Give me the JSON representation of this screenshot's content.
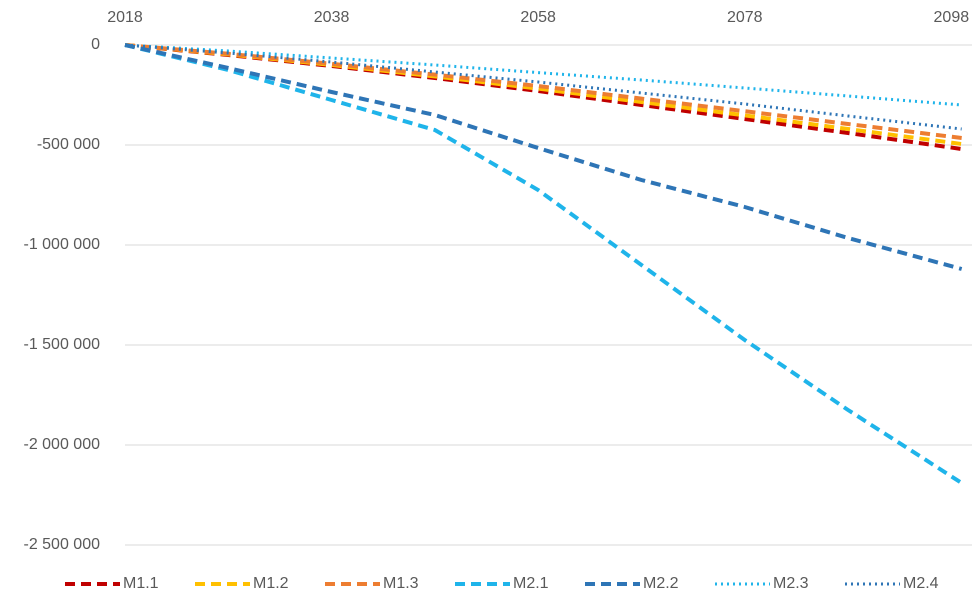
{
  "chart_data": {
    "type": "line",
    "x": [
      2018,
      2028,
      2038,
      2048,
      2058,
      2068,
      2078,
      2088,
      2099
    ],
    "xlim": [
      2018,
      2100
    ],
    "xticks": [
      2018,
      2038,
      2058,
      2078,
      2098
    ],
    "ylim": [
      -2500000,
      0
    ],
    "yticks": [
      0,
      {
        "value": -500000,
        "label": "-500 000"
      },
      {
        "value": -1000000,
        "label": "-1 000 000"
      },
      {
        "value": -1500000,
        "label": "-1 500 000"
      },
      {
        "value": -2000000,
        "label": "-2 000 000"
      },
      {
        "value": -2500000,
        "label": "-2 500 000"
      }
    ],
    "grid": true,
    "legend": "bottom",
    "series": [
      {
        "name": "M1.1",
        "color": "#c00000",
        "style": "dashed",
        "values": [
          0,
          -50000,
          -105000,
          -165000,
          -230000,
          -300000,
          -370000,
          -440000,
          -520000
        ]
      },
      {
        "name": "M1.2",
        "color": "#ffc000",
        "style": "dashed",
        "values": [
          0,
          -47000,
          -100000,
          -157000,
          -218000,
          -285000,
          -352000,
          -420000,
          -495000
        ]
      },
      {
        "name": "M1.3",
        "color": "#ed7d31",
        "style": "dashed",
        "values": [
          0,
          -44000,
          -94000,
          -148000,
          -205000,
          -268000,
          -331000,
          -395000,
          -465000
        ]
      },
      {
        "name": "M2.1",
        "color": "#1fb4ea",
        "style": "dashed",
        "values": [
          0,
          -125000,
          -275000,
          -425000,
          -725000,
          -1100000,
          -1475000,
          -1825000,
          -2190000
        ]
      },
      {
        "name": "M2.2",
        "color": "#2e75b6",
        "style": "dashed",
        "values": [
          0,
          -115000,
          -235000,
          -350000,
          -515000,
          -675000,
          -810000,
          -965000,
          -1120000
        ]
      },
      {
        "name": "M2.3",
        "color": "#1fb4ea",
        "style": "dotted",
        "values": [
          0,
          -30000,
          -65000,
          -100000,
          -138000,
          -175000,
          -215000,
          -255000,
          -300000
        ]
      },
      {
        "name": "M2.4",
        "color": "#2e75b6",
        "style": "dotted",
        "values": [
          0,
          -40000,
          -85000,
          -135000,
          -185000,
          -240000,
          -295000,
          -355000,
          -420000
        ]
      }
    ]
  }
}
